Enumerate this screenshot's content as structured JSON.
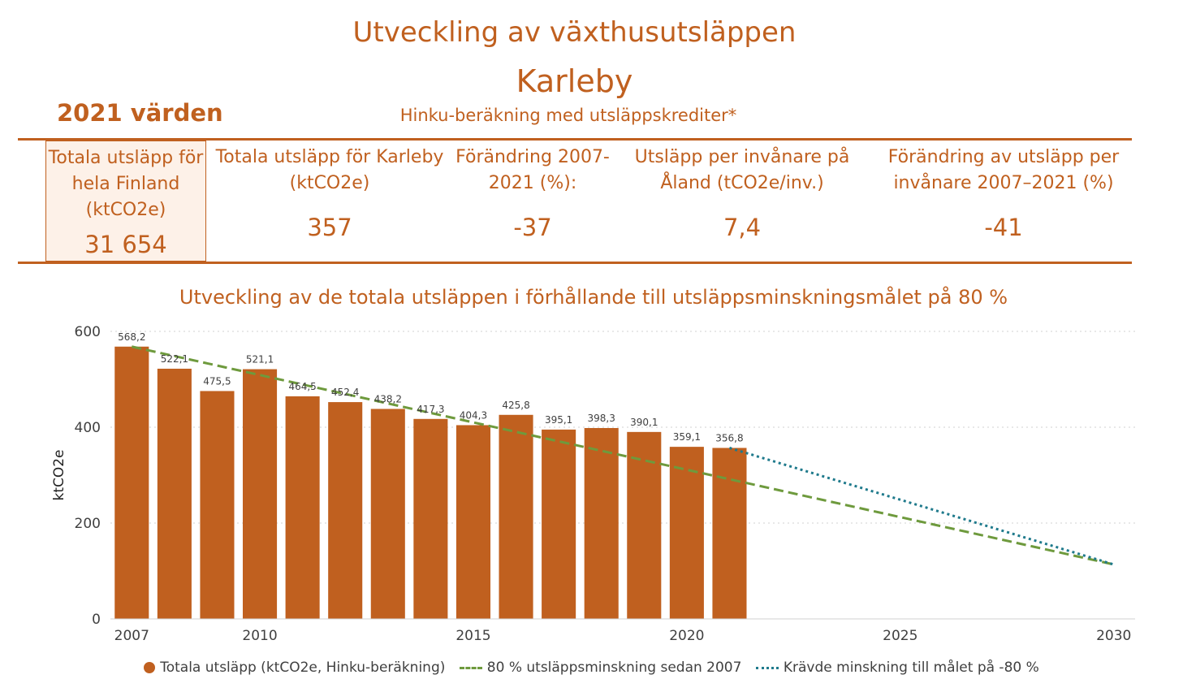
{
  "header": {
    "title": "Utveckling av växthusutsläppen",
    "subtitle": "Karleby",
    "year_label": "2021 värden",
    "method": "Hinku-beräkning med utsläppskrediter*"
  },
  "stats": [
    {
      "label": "Totala utsläpp för hela Finland (ktCO2e)",
      "value": "31 654"
    },
    {
      "label": "Totala utsläpp för Karleby (ktCO2e)",
      "value": "357"
    },
    {
      "label": "Förändring 2007-2021 (%):",
      "value": "-37"
    },
    {
      "label": "Utsläpp per invånare på Åland (tCO2e/inv.)",
      "value": "7,4"
    },
    {
      "label": "Förändring av utsläpp per invånare 2007–2021 (%)",
      "value": "-41"
    }
  ],
  "colors": {
    "accent": "#c0601f",
    "bar": "#c0601f",
    "target_line": "#6e9a3d",
    "required_line": "#1f7a8c"
  },
  "chart_data": {
    "type": "bar",
    "title": "Utveckling av de totala utsläppen i förhållande till utsläppsminskningsmålet på 80 %",
    "ylabel": "ktCO2e",
    "xlabel": "",
    "ylim": [
      0,
      600
    ],
    "yticks": [
      0,
      200,
      400,
      600
    ],
    "xlim": [
      2007,
      2030
    ],
    "xticks": [
      2007,
      2010,
      2015,
      2020,
      2025,
      2030
    ],
    "grid": true,
    "legend": "bottom",
    "categories": [
      2007,
      2008,
      2009,
      2010,
      2011,
      2012,
      2013,
      2014,
      2015,
      2016,
      2017,
      2018,
      2019,
      2020,
      2021
    ],
    "series": [
      {
        "name": "Totala utsläpp (ktCO2e, Hinku-beräkning)",
        "type": "bar",
        "values": [
          568.2,
          522.1,
          475.5,
          521.1,
          464.5,
          452.4,
          438.2,
          417.3,
          404.3,
          425.8,
          395.1,
          398.3,
          390.1,
          359.1,
          356.8
        ],
        "labels": [
          "568,2",
          "522,1",
          "475,5",
          "521,1",
          "464,5",
          "452,4",
          "438,2",
          "417,3",
          "404,3",
          "425,8",
          "395,1",
          "398,3",
          "390,1",
          "359,1",
          "356,8"
        ]
      },
      {
        "name": "80 % utsläppsminskning sedan 2007",
        "type": "line",
        "style": "dashed",
        "x": [
          2007,
          2030
        ],
        "values": [
          568.2,
          113.6
        ]
      },
      {
        "name": "Krävde minskning till målet på -80 %",
        "type": "line",
        "style": "dotted",
        "x": [
          2021,
          2030
        ],
        "values": [
          356.8,
          113.6
        ]
      }
    ]
  }
}
